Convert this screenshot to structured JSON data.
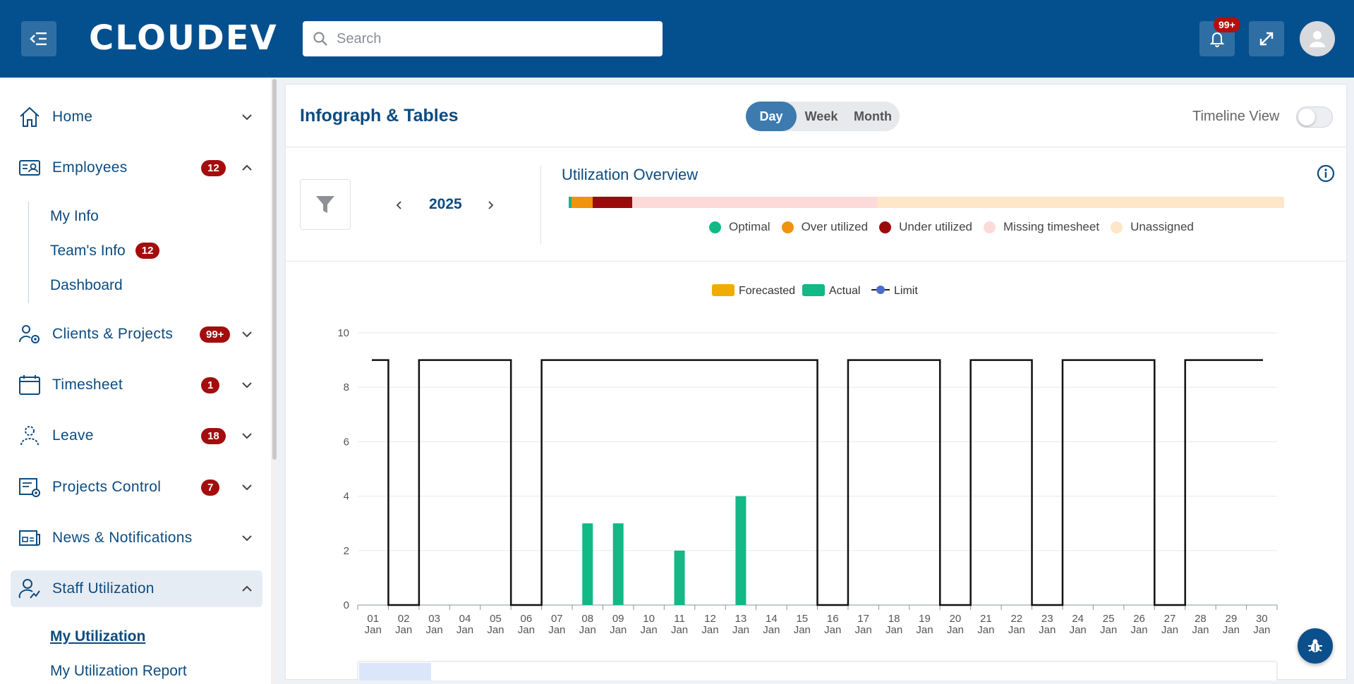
{
  "header": {
    "logo_text": "CLOUDEV",
    "search_placeholder": "Search",
    "notifications_badge": "99+"
  },
  "sidebar": {
    "items": [
      {
        "key": "home",
        "label": "Home",
        "badge": "",
        "expanded": false
      },
      {
        "key": "employees",
        "label": "Employees",
        "badge": "12",
        "expanded": true
      },
      {
        "key": "clients",
        "label": "Clients & Projects",
        "badge": "99+",
        "expanded": false
      },
      {
        "key": "timesheet",
        "label": "Timesheet",
        "badge": "1",
        "expanded": false
      },
      {
        "key": "leave",
        "label": "Leave",
        "badge": "18",
        "expanded": false
      },
      {
        "key": "projects-control",
        "label": "Projects Control",
        "badge": "7",
        "expanded": false
      },
      {
        "key": "news",
        "label": "News & Notifications",
        "badge": "",
        "expanded": false
      },
      {
        "key": "staff-utilization",
        "label": "Staff Utilization",
        "badge": "",
        "expanded": true
      }
    ],
    "employees_sub": [
      {
        "label": "My Info",
        "badge": ""
      },
      {
        "label": "Team's Info",
        "badge": "12"
      },
      {
        "label": "Dashboard",
        "badge": ""
      }
    ],
    "staff_sub": [
      {
        "label": "My Utilization",
        "active": true
      },
      {
        "label": "My Utilization Report",
        "active": false
      }
    ]
  },
  "main": {
    "title": "Infograph & Tables",
    "view_modes": [
      "Day",
      "Week",
      "Month"
    ],
    "selected_mode": "Day",
    "timeline_label": "Timeline View",
    "timeline_on": false,
    "year": "2025",
    "utilization": {
      "title": "Utilization Overview",
      "segments": [
        {
          "name": "Optimal",
          "color": "#12b886",
          "fraction": 0.004
        },
        {
          "name": "Over utilized",
          "color": "#f0930d",
          "fraction": 0.03
        },
        {
          "name": "Under utilized",
          "color": "#9b0a0a",
          "fraction": 0.055
        },
        {
          "name": "Missing timesheet",
          "color": "#fddada",
          "fraction": 0.343
        },
        {
          "name": "Unassigned",
          "color": "#fde7c8",
          "fraction": 0.568
        }
      ]
    }
  },
  "chart_data": {
    "type": "bar",
    "legend": [
      {
        "name": "Forecasted",
        "color": "#f0ad00"
      },
      {
        "name": "Actual",
        "color": "#12b886"
      },
      {
        "name": "Limit",
        "color": "#4a6ccf"
      }
    ],
    "categories": [
      "01",
      "02",
      "03",
      "04",
      "05",
      "06",
      "07",
      "08",
      "09",
      "10",
      "11",
      "12",
      "13",
      "14",
      "15",
      "16",
      "17",
      "18",
      "19",
      "20",
      "21",
      "22",
      "23",
      "24",
      "25",
      "26",
      "27",
      "28",
      "29",
      "30"
    ],
    "category_sub": "Jan",
    "series": [
      {
        "name": "Forecasted",
        "values": [
          0,
          0,
          0,
          0,
          0,
          0,
          0,
          0,
          0,
          0,
          0,
          0,
          0,
          0,
          0,
          0,
          0,
          0,
          0,
          0,
          0,
          0,
          0,
          0,
          0,
          0,
          0,
          0,
          0,
          0
        ]
      },
      {
        "name": "Actual",
        "values": [
          0,
          0,
          0,
          0,
          0,
          0,
          0,
          3,
          3,
          0,
          2,
          0,
          4,
          0,
          0,
          0,
          0,
          0,
          0,
          0,
          0,
          0,
          0,
          0,
          0,
          0,
          0,
          0,
          0,
          0
        ]
      },
      {
        "name": "Limit",
        "values": [
          9,
          0,
          9,
          9,
          9,
          0,
          9,
          9,
          9,
          9,
          9,
          9,
          9,
          9,
          9,
          0,
          9,
          9,
          9,
          0,
          9,
          9,
          0,
          9,
          9,
          9,
          0,
          9,
          9,
          9
        ]
      }
    ],
    "yticks": [
      0,
      2,
      4,
      6,
      8,
      10
    ],
    "ylim": [
      0,
      10
    ]
  }
}
